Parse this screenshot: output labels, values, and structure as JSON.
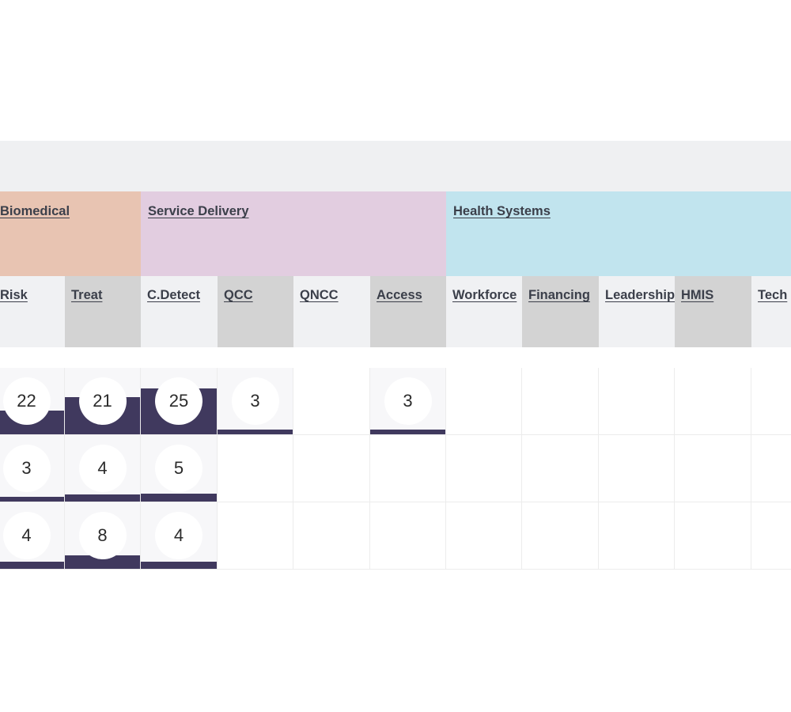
{
  "groups": [
    {
      "label": "Biomedical",
      "color": "#e8c4b2"
    },
    {
      "label": "Service Delivery",
      "color": "#e2cde0"
    },
    {
      "label": "Health Systems",
      "color": "#c1e4ee"
    }
  ],
  "columns": [
    {
      "label": "Risk"
    },
    {
      "label": "Treat"
    },
    {
      "label": "C.Detect"
    },
    {
      "label": "QCC"
    },
    {
      "label": "QNCC"
    },
    {
      "label": "Access"
    },
    {
      "label": "Workforce"
    },
    {
      "label": "Financing"
    },
    {
      "label": "Leadership"
    },
    {
      "label": "HMIS"
    },
    {
      "label": "Tech"
    }
  ],
  "rows": [
    {
      "cells": [
        {
          "value": "22",
          "fill_fraction": 0.35
        },
        {
          "value": "21",
          "fill_fraction": 0.55
        },
        {
          "value": "25",
          "fill_fraction": 0.68
        },
        {
          "value": "3",
          "fill_fraction": 0.07
        },
        {
          "value": ""
        },
        {
          "value": "3",
          "fill_fraction": 0.07
        },
        {
          "value": ""
        },
        {
          "value": ""
        },
        {
          "value": ""
        },
        {
          "value": ""
        },
        {
          "value": ""
        }
      ]
    },
    {
      "cells": [
        {
          "value": "3",
          "fill_fraction": 0.07
        },
        {
          "value": "4",
          "fill_fraction": 0.1
        },
        {
          "value": "5",
          "fill_fraction": 0.12
        },
        {
          "value": ""
        },
        {
          "value": ""
        },
        {
          "value": ""
        },
        {
          "value": ""
        },
        {
          "value": ""
        },
        {
          "value": ""
        },
        {
          "value": ""
        },
        {
          "value": ""
        }
      ]
    },
    {
      "cells": [
        {
          "value": "4",
          "fill_fraction": 0.1
        },
        {
          "value": "8",
          "fill_fraction": 0.2
        },
        {
          "value": "4",
          "fill_fraction": 0.1
        },
        {
          "value": ""
        },
        {
          "value": ""
        },
        {
          "value": ""
        },
        {
          "value": ""
        },
        {
          "value": ""
        },
        {
          "value": ""
        },
        {
          "value": ""
        },
        {
          "value": ""
        }
      ]
    }
  ]
}
